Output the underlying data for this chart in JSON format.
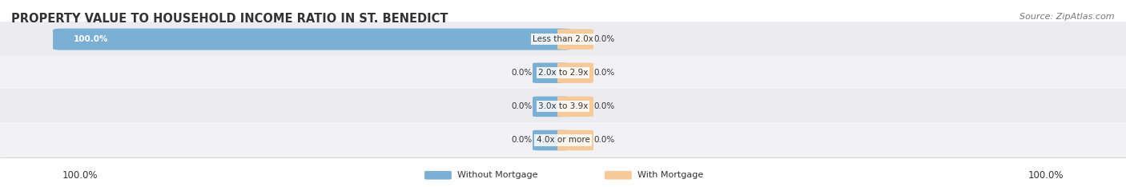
{
  "title": "PROPERTY VALUE TO HOUSEHOLD INCOME RATIO IN ST. BENEDICT",
  "source": "Source: ZipAtlas.com",
  "categories": [
    "Less than 2.0x",
    "2.0x to 2.9x",
    "3.0x to 3.9x",
    "4.0x or more"
  ],
  "without_mortgage": [
    100.0,
    0.0,
    0.0,
    0.0
  ],
  "with_mortgage": [
    0.0,
    0.0,
    0.0,
    0.0
  ],
  "color_without": "#7bafd4",
  "color_with": "#f5c99a",
  "row_bg_colors": [
    "#ebebf0",
    "#f2f2f5"
  ],
  "title_color": "#333333",
  "source_color": "#777777",
  "label_color": "#333333",
  "axis_label_left": "100.0%",
  "axis_label_right": "100.0%",
  "legend_without": "Without Mortgage",
  "legend_with": "With Mortgage",
  "figsize": [
    14.06,
    2.34
  ],
  "dpi": 100
}
